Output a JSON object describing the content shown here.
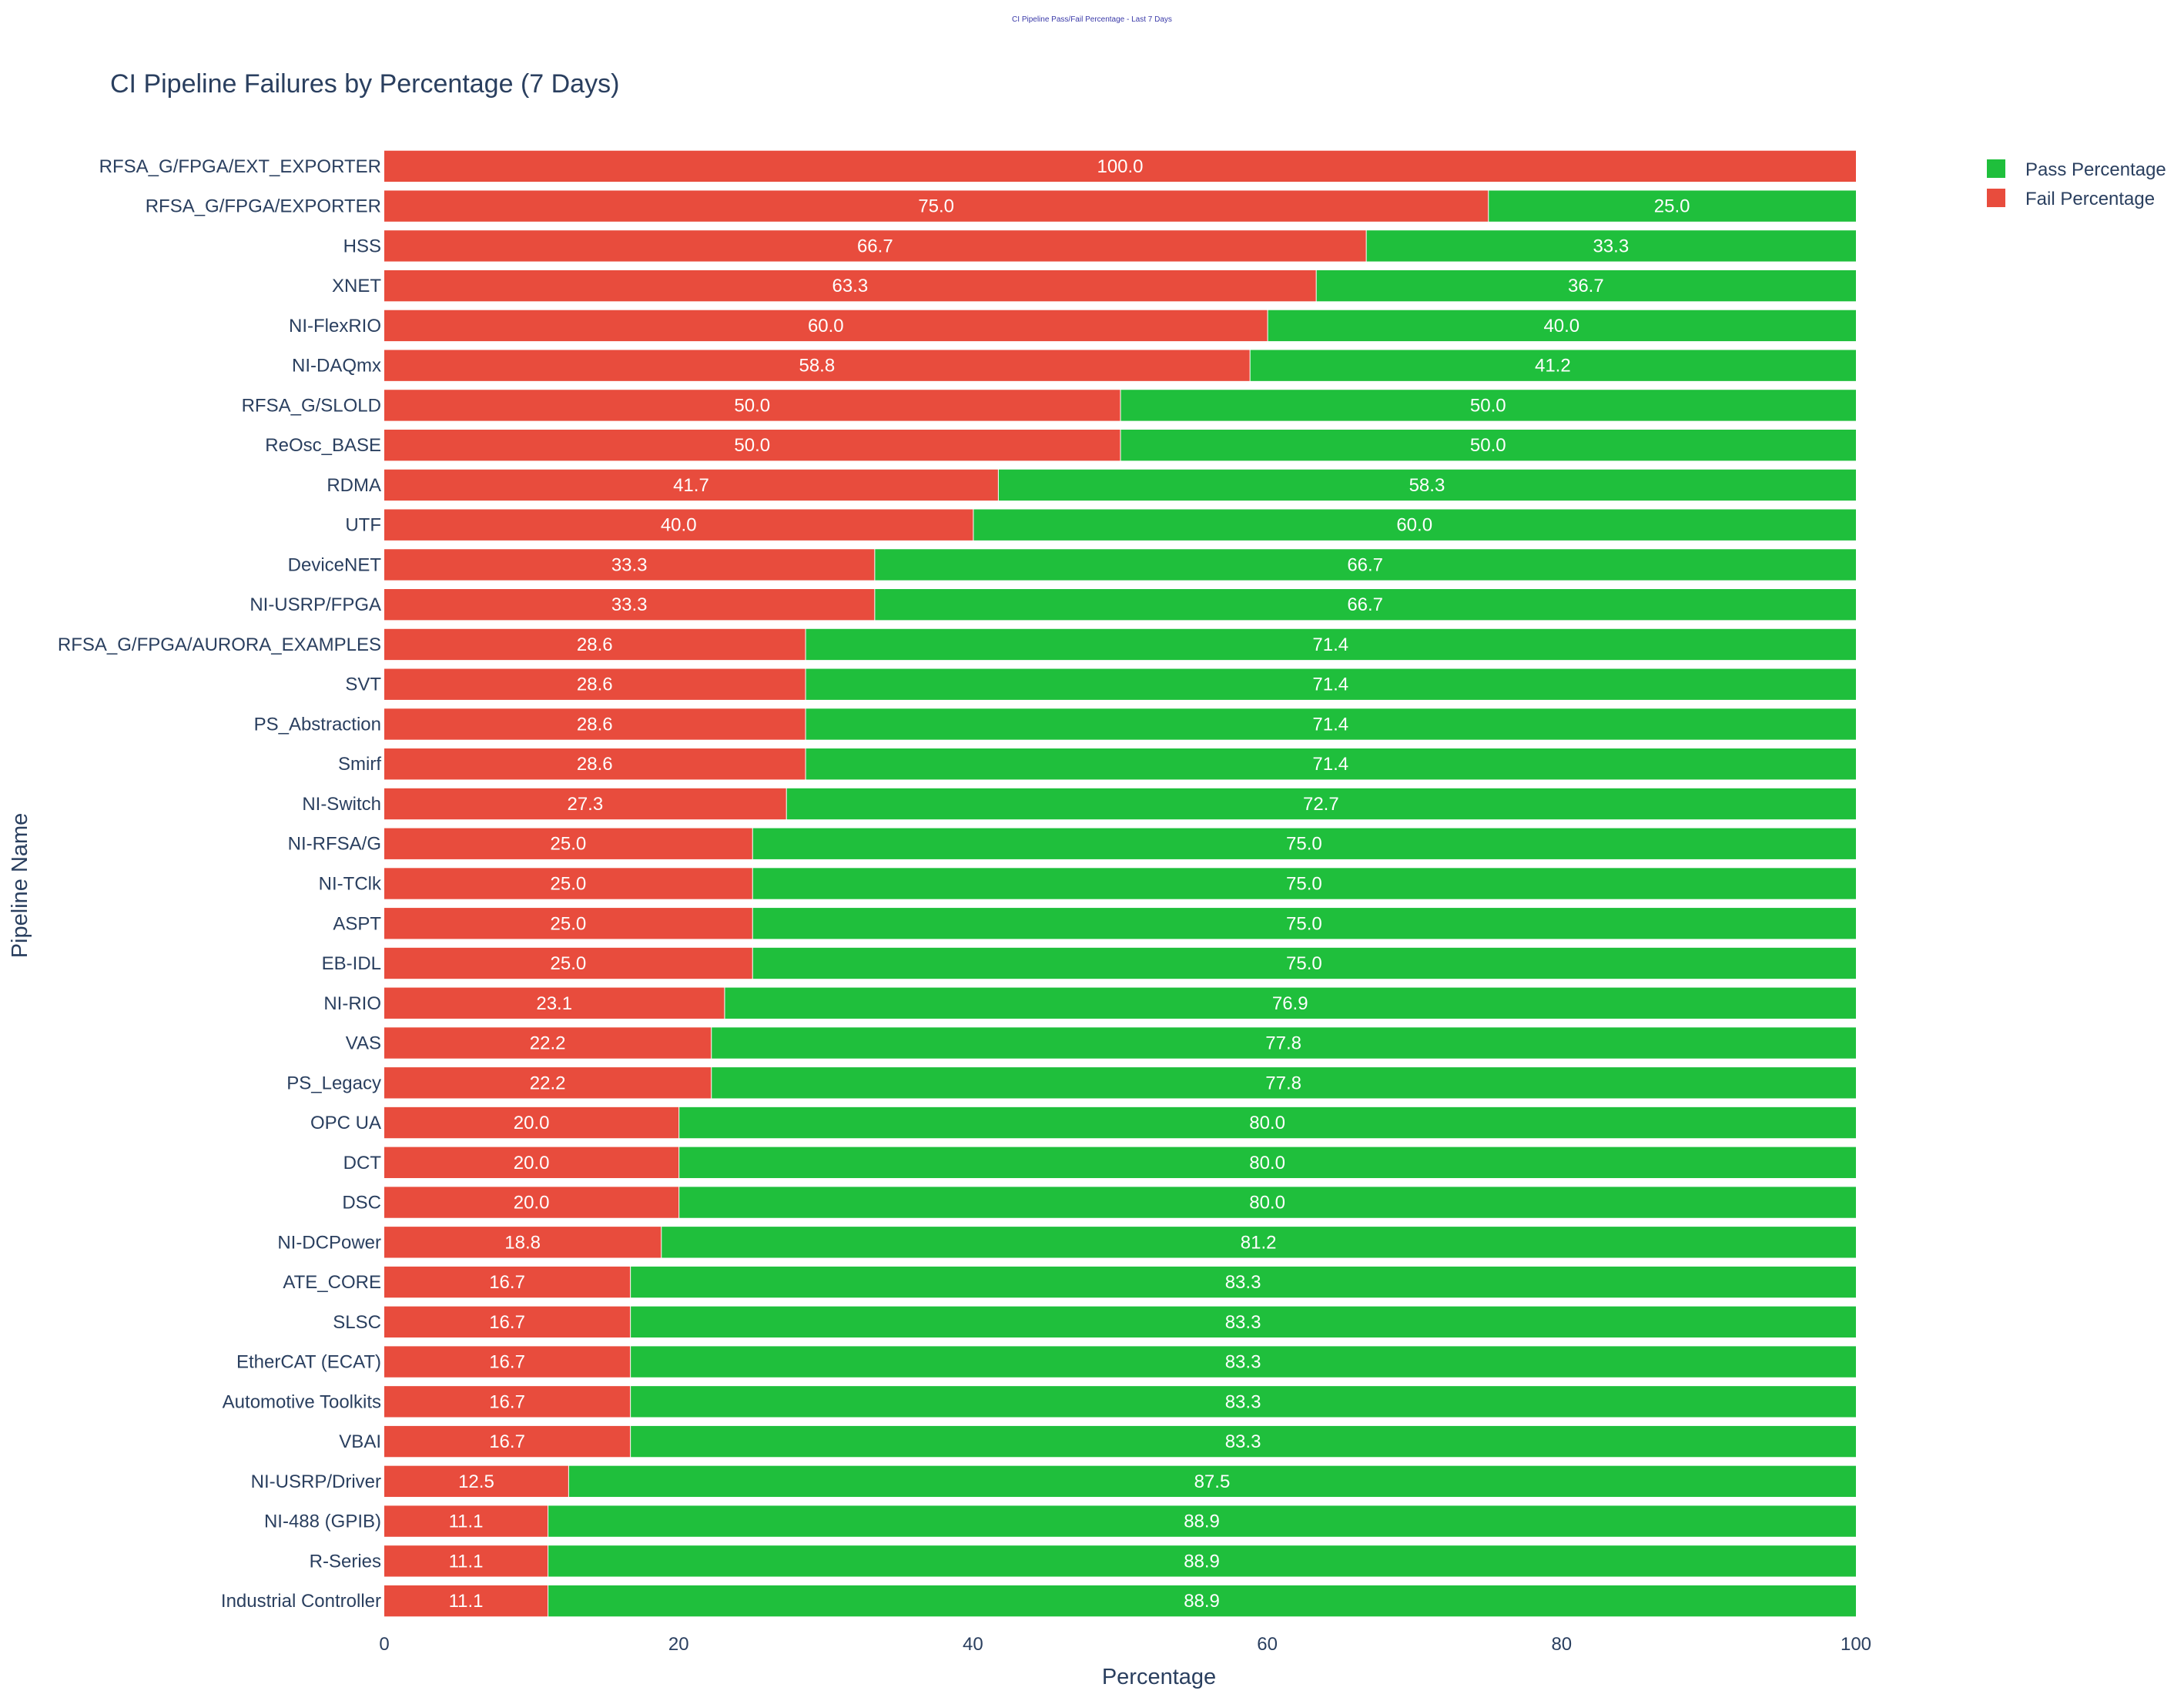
{
  "page_heading": "CI Pipeline Pass/Fail Percentage - Last 7 Days",
  "colors": {
    "pass": "#1fbf3c",
    "fail": "#e84c3d",
    "text": "#2a3f5f",
    "heading": "#3a3aa8"
  },
  "chart_data": {
    "type": "bar",
    "orientation": "horizontal",
    "stacked": true,
    "title": "CI Pipeline Failures by Percentage (7 Days)",
    "xlabel": "Percentage",
    "ylabel": "Pipeline Name",
    "xlim": [
      0,
      100
    ],
    "xticks": [
      0,
      20,
      40,
      60,
      80,
      100
    ],
    "legend_position": "top-right",
    "grid": false,
    "categories": [
      "RFSA_G/FPGA/EXT_EXPORTER",
      "RFSA_G/FPGA/EXPORTER",
      "HSS",
      "XNET",
      "NI-FlexRIO",
      "NI-DAQmx",
      "RFSA_G/SLOLD",
      "ReOsc_BASE",
      "RDMA",
      "UTF",
      "DeviceNET",
      "NI-USRP/FPGA",
      "RFSA_G/FPGA/AURORA_EXAMPLES",
      "SVT",
      "PS_Abstraction",
      "Smirf",
      "NI-Switch",
      "NI-RFSA/G",
      "NI-TClk",
      "ASPT",
      "EB-IDL",
      "NI-RIO",
      "VAS",
      "PS_Legacy",
      "OPC UA",
      "DCT",
      "DSC",
      "NI-DCPower",
      "ATE_CORE",
      "SLSC",
      "EtherCAT (ECAT)",
      "Automotive Toolkits",
      "VBAI",
      "NI-USRP/Driver",
      "NI-488 (GPIB)",
      "R-Series",
      "Industrial Controller"
    ],
    "series": [
      {
        "name": "Fail Percentage",
        "values": [
          100.0,
          75.0,
          66.7,
          63.3,
          60.0,
          58.8,
          50.0,
          50.0,
          41.7,
          40.0,
          33.3,
          33.3,
          28.6,
          28.6,
          28.6,
          28.6,
          27.3,
          25.0,
          25.0,
          25.0,
          25.0,
          23.1,
          22.2,
          22.2,
          20.0,
          20.0,
          20.0,
          18.8,
          16.7,
          16.7,
          16.7,
          16.7,
          16.7,
          12.5,
          11.1,
          11.1,
          11.1
        ]
      },
      {
        "name": "Pass Percentage",
        "values": [
          0.0,
          25.0,
          33.3,
          36.7,
          40.0,
          41.2,
          50.0,
          50.0,
          58.3,
          60.0,
          66.7,
          66.7,
          71.4,
          71.4,
          71.4,
          71.4,
          72.7,
          75.0,
          75.0,
          75.0,
          75.0,
          76.9,
          77.8,
          77.8,
          80.0,
          80.0,
          80.0,
          81.2,
          83.3,
          83.3,
          83.3,
          83.3,
          83.3,
          87.5,
          88.9,
          88.9,
          88.9
        ]
      }
    ],
    "legend": [
      "Pass Percentage",
      "Fail Percentage"
    ]
  }
}
